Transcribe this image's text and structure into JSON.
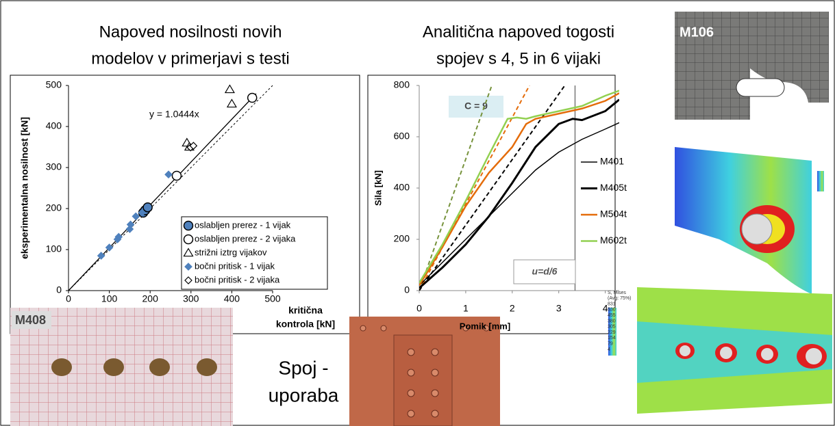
{
  "chart_data": [
    {
      "type": "scatter",
      "title": [
        "Napoved nosilnosti novih",
        "modelov v primerjavi s testi"
      ],
      "x_label": [
        "kritična",
        "kontrola [kN]"
      ],
      "y_label": "eksperimentalna nosilnost [kN]",
      "xlim": [
        0,
        500
      ],
      "ylim": [
        0,
        500
      ],
      "xticks": [
        0,
        100,
        200,
        300,
        400,
        500
      ],
      "yticks": [
        0,
        100,
        200,
        300,
        400,
        500
      ],
      "fit_line": {
        "label": "y = 1.0444x",
        "slope": 1.0444
      },
      "series": [
        {
          "name": "oslabljen prerez - 1 vijak",
          "marker": "circle-filled",
          "color": "#4f81bd",
          "x": [
            183,
            188,
            194
          ],
          "values": [
            190,
            196,
            203
          ]
        },
        {
          "name": "oslabljen prerez - 2 vijaka",
          "marker": "circle-open",
          "color": "#000000",
          "x": [
            265,
            450
          ],
          "values": [
            280,
            470
          ]
        },
        {
          "name": "strižni iztrg vijakov",
          "marker": "triangle-open",
          "color": "#000000",
          "x": [
            395,
            400,
            290,
            296
          ],
          "values": [
            490,
            455,
            360,
            350
          ]
        },
        {
          "name": "bočni pritisk - 1 vijak",
          "marker": "diamond-filled",
          "color": "#4f81bd",
          "x": [
            80,
            100,
            120,
            123,
            150,
            152,
            165,
            180,
            245
          ],
          "values": [
            85,
            105,
            125,
            131,
            150,
            161,
            181,
            190,
            283
          ]
        },
        {
          "name": "bočni pritisk - 2 vijaka",
          "marker": "diamond-open",
          "color": "#000000",
          "x": [
            299,
            306
          ],
          "values": [
            349,
            353
          ]
        }
      ]
    },
    {
      "type": "line",
      "title": [
        "Analitična napoved togosti",
        "spojev s 4, 5 in 6 vijaki"
      ],
      "x_label": "Pomik [mm]",
      "y_label": "Sila [kN]",
      "xlim": [
        0,
        4.3
      ],
      "ylim": [
        0,
        800
      ],
      "xticks": [
        0,
        1,
        2,
        3,
        4
      ],
      "yticks": [
        0,
        200,
        400,
        600,
        800
      ],
      "annotation": "C = 9",
      "vline": {
        "value": 3.35,
        "label": "u=d/6"
      },
      "series": [
        {
          "name": "M401",
          "color": "#000000",
          "width": 1.5,
          "x": [
            0,
            0.5,
            1,
            1.5,
            2,
            2.5,
            3,
            3.5,
            4,
            4.3
          ],
          "values": [
            20,
            110,
            200,
            290,
            380,
            470,
            540,
            590,
            630,
            655
          ]
        },
        {
          "name": "M405t",
          "color": "#000000",
          "width": 3,
          "x": [
            0,
            0.5,
            1,
            1.5,
            2,
            2.5,
            3,
            3.3,
            3.5,
            4,
            4.3
          ],
          "values": [
            10,
            90,
            180,
            290,
            420,
            560,
            650,
            670,
            665,
            700,
            745
          ]
        },
        {
          "name": "M504t",
          "color": "#e46c0a",
          "width": 2.5,
          "x": [
            0,
            0.5,
            1,
            1.5,
            2,
            2.3,
            2.5,
            3,
            3.5,
            4,
            4.3
          ],
          "values": [
            20,
            170,
            330,
            460,
            560,
            650,
            670,
            690,
            710,
            740,
            770
          ]
        },
        {
          "name": "M602t",
          "color": "#92d050",
          "width": 2.5,
          "x": [
            0,
            0.5,
            1,
            1.5,
            1.9,
            2.1,
            2.3,
            2.5,
            3,
            3.5,
            4,
            4.3
          ],
          "values": [
            30,
            180,
            350,
            530,
            670,
            675,
            670,
            680,
            700,
            720,
            760,
            780
          ]
        }
      ],
      "reference_lines": [
        {
          "color": "#77933c",
          "x": [
            0,
            1.56
          ],
          "values": [
            0,
            800
          ]
        },
        {
          "color": "#e46c0a",
          "x": [
            0,
            2.37
          ],
          "values": [
            0,
            800
          ]
        },
        {
          "color": "#000000",
          "x": [
            0,
            3.13
          ],
          "values": [
            0,
            800
          ]
        }
      ]
    }
  ],
  "slide": {
    "caption": [
      "Spoj -",
      "uporaba"
    ],
    "photo_top": "M106",
    "photo_bottom": "M408",
    "fe_legend": [
      "S, Mises",
      "(Avg: 75%)",
      "831",
      "530",
      "455",
      "380",
      "305",
      "229",
      "154",
      "79",
      "4"
    ]
  }
}
